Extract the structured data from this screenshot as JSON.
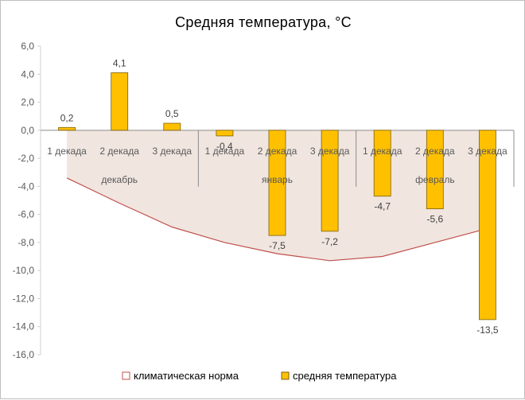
{
  "chart_data": {
    "type": "bar",
    "title": "Средняя  температура,  °C",
    "categories": [
      "1 декада",
      "2 декада",
      "3 декада",
      "1 декада",
      "2 декада",
      "3 декада",
      "1 декада",
      "2 декада",
      "3 декада"
    ],
    "groups": [
      {
        "label": "декабрь",
        "count": 3
      },
      {
        "label": "январь",
        "count": 3
      },
      {
        "label": "февраль",
        "count": 3
      }
    ],
    "series": [
      {
        "name": "климатическая норма",
        "kind": "area",
        "color": "#c0504d",
        "fill": "#ebdcd4",
        "values": [
          -3.4,
          -5.2,
          -6.9,
          -8.0,
          -8.8,
          -9.3,
          -9.0,
          -8.0,
          -7.0
        ]
      },
      {
        "name": "средняя температура",
        "kind": "bar",
        "color": "#ffc000",
        "edge": "#7f6000",
        "values": [
          0.2,
          4.1,
          0.5,
          -0.4,
          -7.5,
          -7.2,
          -4.7,
          -5.6,
          -13.5
        ],
        "data_labels": [
          "0,2",
          "4,1",
          "0,5",
          "-0,4",
          "-7,5",
          "-7,2",
          "-4,7",
          "-5,6",
          "-13,5"
        ]
      }
    ],
    "ylim": [
      -16,
      6
    ],
    "yticks": [
      6,
      4,
      2,
      0,
      -2,
      -4,
      -6,
      -8,
      -10,
      -12,
      -14,
      -16
    ],
    "ytick_labels": [
      "6,0",
      "4,0",
      "2,0",
      "0,0",
      "-2,0",
      "-4,0",
      "-6,0",
      "-8,0",
      "-10,0",
      "-12,0",
      "-14,0",
      "-16,0"
    ],
    "grid": false,
    "legend_position": "bottom",
    "xlabel": "",
    "ylabel": ""
  }
}
